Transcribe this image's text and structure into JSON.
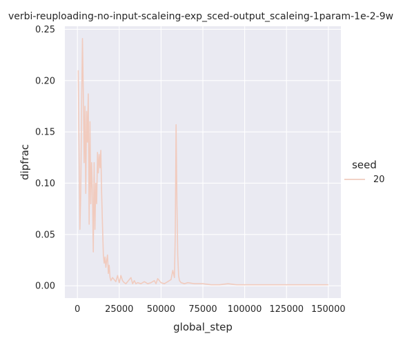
{
  "chart_data": {
    "type": "line",
    "title": "verbi-reuploading-no-input-scaleing-exp_sced-output_scaleing-1param-1e-2-9w",
    "xlabel": "global_step",
    "ylabel": "dipfrac",
    "xlim": [
      -7500,
      157500
    ],
    "ylim": [
      -0.012,
      0.253
    ],
    "x_ticks": [
      0,
      25000,
      50000,
      75000,
      100000,
      125000,
      150000
    ],
    "y_ticks": [
      0.0,
      0.05,
      0.1,
      0.15,
      0.2,
      0.25
    ],
    "x_tick_labels": [
      "0",
      "25000",
      "50000",
      "75000",
      "100000",
      "125000",
      "150000"
    ],
    "y_tick_labels": [
      "0.00",
      "0.05",
      "0.10",
      "0.15",
      "0.20",
      "0.25"
    ],
    "grid": true,
    "background": "#eaeaf2",
    "legend": {
      "title": "seed",
      "placement": "right"
    },
    "series": [
      {
        "name": "20",
        "color": "#f1cbbe",
        "x": [
          500,
          1000,
          1500,
          2000,
          2500,
          3000,
          3500,
          4000,
          4500,
          5000,
          5500,
          6000,
          6500,
          7000,
          7500,
          8000,
          8500,
          9000,
          9500,
          10000,
          10500,
          11000,
          11500,
          12000,
          12500,
          13000,
          13500,
          14000,
          14500,
          15000,
          15500,
          16000,
          16500,
          17000,
          17500,
          18000,
          18500,
          19000,
          19500,
          20000,
          21000,
          22000,
          23000,
          24000,
          25000,
          26000,
          27000,
          28000,
          29000,
          30000,
          32000,
          33000,
          34000,
          35000,
          36000,
          38000,
          40000,
          42000,
          44000,
          46000,
          47000,
          48000,
          50000,
          52000,
          54000,
          56000,
          57000,
          58000,
          58500,
          59000,
          59500,
          60000,
          60500,
          61000,
          62000,
          64000,
          66000,
          70000,
          75000,
          80000,
          85000,
          90000,
          95000,
          100000,
          110000,
          120000,
          130000,
          140000,
          150000
        ],
        "values": [
          0.21,
          0.13,
          0.055,
          0.09,
          0.17,
          0.241,
          0.19,
          0.12,
          0.175,
          0.09,
          0.17,
          0.14,
          0.187,
          0.06,
          0.16,
          0.08,
          0.12,
          0.09,
          0.033,
          0.12,
          0.055,
          0.1,
          0.08,
          0.13,
          0.11,
          0.128,
          0.115,
          0.132,
          0.09,
          0.06,
          0.03,
          0.022,
          0.028,
          0.018,
          0.025,
          0.03,
          0.012,
          0.02,
          0.008,
          0.005,
          0.008,
          0.006,
          0.004,
          0.01,
          0.003,
          0.01,
          0.005,
          0.003,
          0.002,
          0.004,
          0.008,
          0.002,
          0.005,
          0.002,
          0.003,
          0.002,
          0.004,
          0.002,
          0.003,
          0.005,
          0.002,
          0.007,
          0.003,
          0.002,
          0.004,
          0.006,
          0.015,
          0.008,
          0.05,
          0.157,
          0.08,
          0.03,
          0.01,
          0.005,
          0.003,
          0.002,
          0.003,
          0.002,
          0.002,
          0.001,
          0.001,
          0.002,
          0.001,
          0.001,
          0.001,
          0.001,
          0.001,
          0.001,
          0.001
        ]
      }
    ]
  }
}
